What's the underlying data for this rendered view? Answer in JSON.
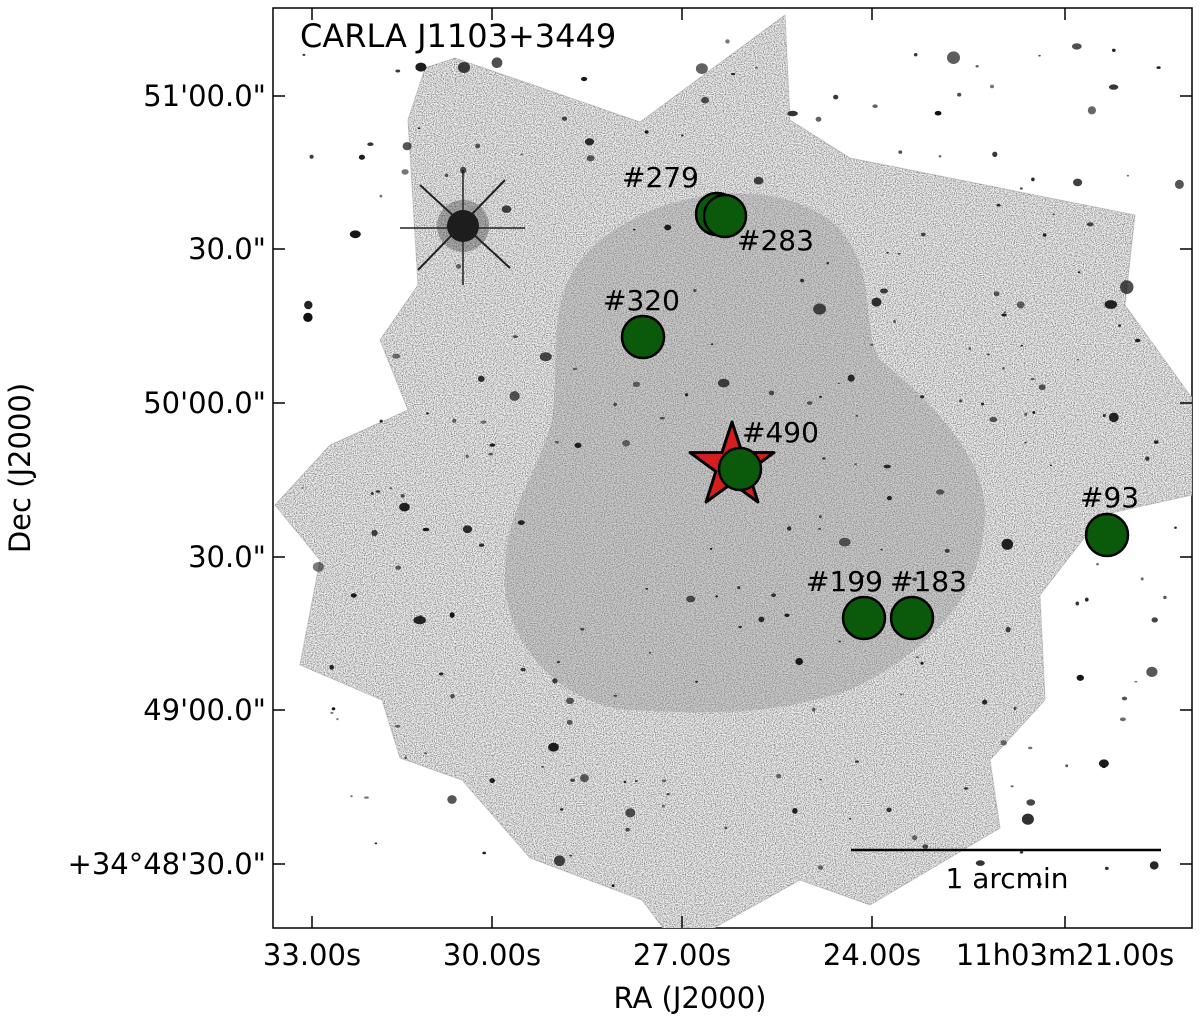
{
  "title": "CARLA J1103+3449",
  "x_axis": {
    "label": "RA (J2000)",
    "ticks": [
      "33.00s",
      "30.00s",
      "27.00s",
      "24.00s",
      "11h03m21.00s"
    ]
  },
  "y_axis": {
    "label": "Dec (J2000)",
    "ticks": [
      "51'00.0\"",
      "30.0\"",
      "50'00.0\"",
      "30.0\"",
      "49'00.0\"",
      "+34°48'30.0\""
    ]
  },
  "scale_bar_label": "1 arcmin",
  "sources": [
    {
      "id": "#279"
    },
    {
      "id": "#283"
    },
    {
      "id": "#320"
    },
    {
      "id": "#490"
    },
    {
      "id": "#93"
    },
    {
      "id": "#199"
    },
    {
      "id": "#183"
    }
  ],
  "colors": {
    "source_marker": "#0b5a0b",
    "target_star": "#d41f1f",
    "overlay_region": "#c9c9c9",
    "background": "#ffffff",
    "image_field": "#f3f3f3"
  },
  "icons": {
    "target": "star-icon",
    "source": "circle-marker"
  }
}
